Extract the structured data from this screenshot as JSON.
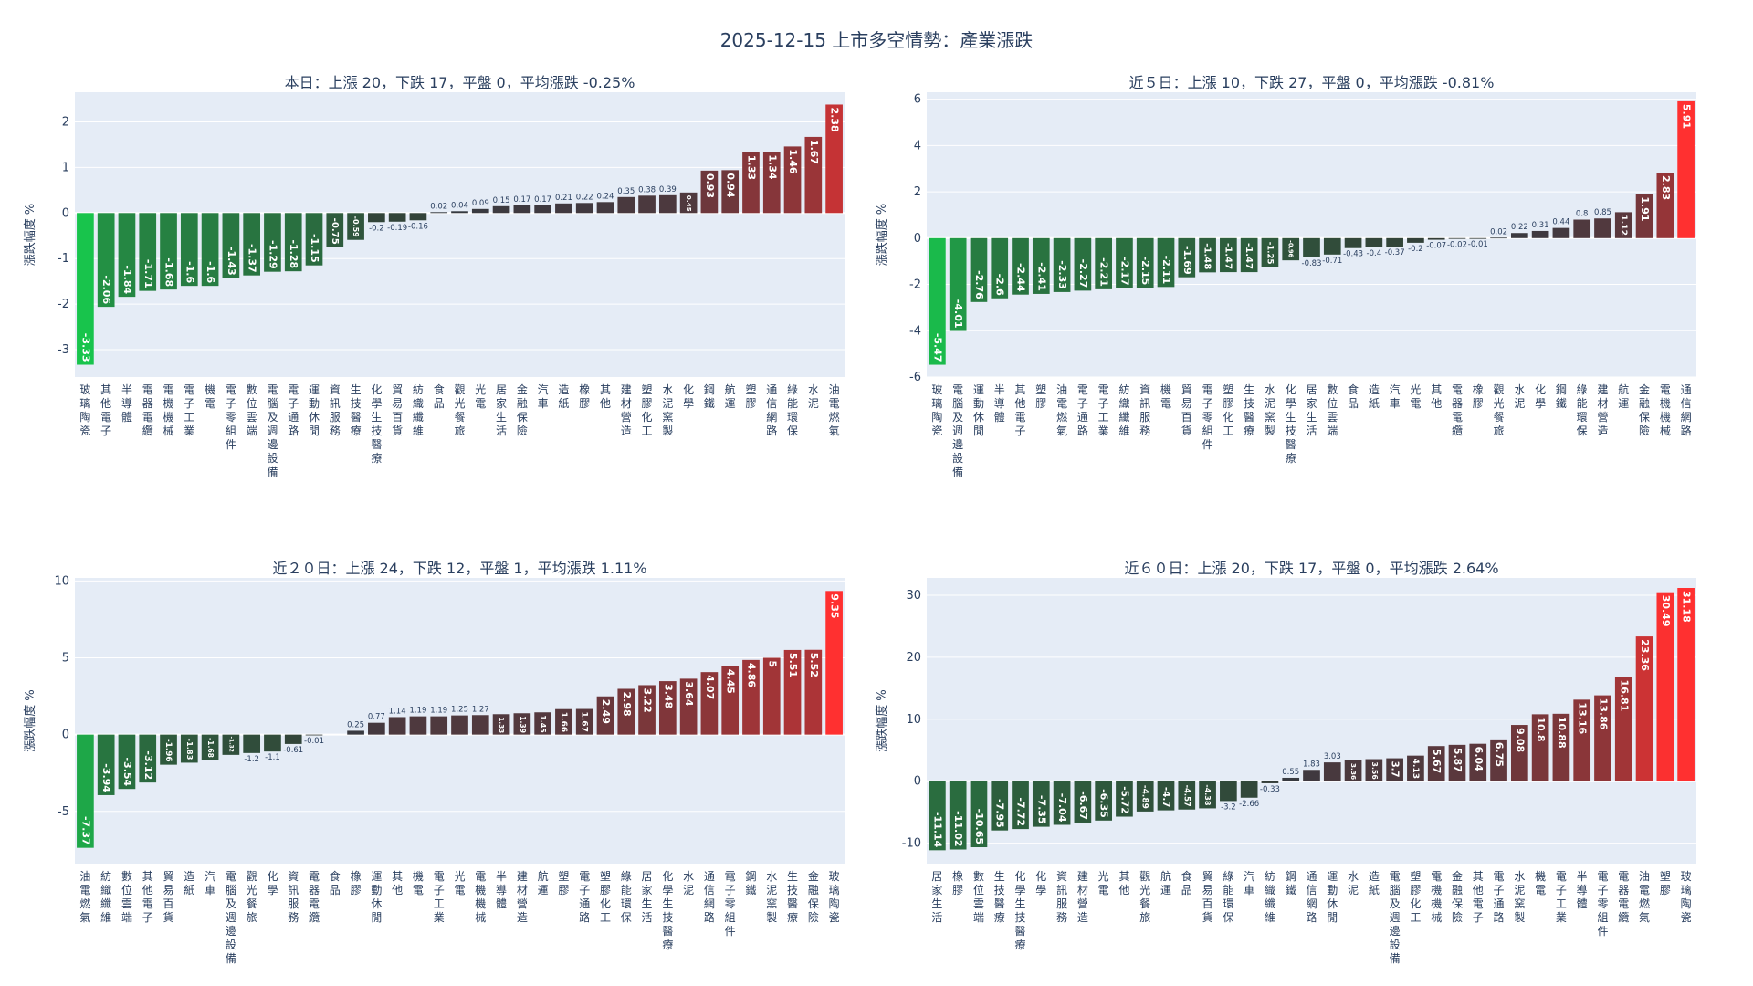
{
  "page_title": "2025-12-15 上市多空情勢：產業漲跌",
  "chart_data": [
    {
      "type": "bar",
      "title": "本日：上漲 20，下跌 17，平盤 0，平均漲跌 -0.25%",
      "ylabel": "漲跌幅度 %",
      "ylim": [
        -3.6,
        2.65
      ],
      "yticks": [
        -3,
        -2,
        -1,
        0,
        1,
        2
      ],
      "categories": [
        "玻璃陶瓷",
        "其他電子",
        "半導體",
        "電器電纜",
        "電機機械",
        "電子工業",
        "機電",
        "電子零組件",
        "數位雲端",
        "電腦及週邊設備",
        "電子通路",
        "運動休閒",
        "資訊服務",
        "生技醫療",
        "化學生技醫療",
        "貿易百貨",
        "紡織纖維",
        "食品",
        "觀光餐旅",
        "光電",
        "居家生活",
        "金融保險",
        "汽車",
        "造紙",
        "橡膠",
        "其他",
        "建材營造",
        "塑膠化工",
        "水泥窯製",
        "化學",
        "鋼鐵",
        "航運",
        "塑膠",
        "通信網路",
        "綠能環保",
        "水泥",
        "油電燃氣"
      ],
      "values": [
        -3.33,
        -2.06,
        -1.84,
        -1.71,
        -1.68,
        -1.6,
        -1.6,
        -1.43,
        -1.37,
        -1.29,
        -1.28,
        -1.15,
        -0.75,
        -0.59,
        -0.2,
        -0.19,
        -0.16,
        0.02,
        0.04,
        0.09,
        0.15,
        0.17,
        0.17,
        0.21,
        0.22,
        0.24,
        0.35,
        0.38,
        0.39,
        0.45,
        0.93,
        0.94,
        1.33,
        1.34,
        1.46,
        1.67,
        2.38
      ],
      "labels": [
        "-3.33",
        "-2.06",
        "-1.84",
        "-1.71",
        "-1.68",
        "-1.6",
        "-1.6",
        "-1.43",
        "-1.37",
        "-1.29",
        "-1.28",
        "-1.15",
        "-0.75",
        "-0.59",
        "-0.2",
        "-0.19",
        "-0.16",
        "0.02",
        "0.04",
        "0.09",
        "0.15",
        "0.17",
        "0.17",
        "0.21",
        "0.22",
        "0.24",
        "0.35",
        "0.38",
        "0.39",
        "0.45",
        "0.93",
        "0.94",
        "1.33",
        "1.34",
        "1.46",
        "1.67",
        "2.38"
      ]
    },
    {
      "type": "bar",
      "title": "近５日：上漲 10，下跌 27，平盤 0，平均漲跌 -0.81%",
      "ylabel": "漲跌幅度 %",
      "ylim": [
        -6,
        6.3
      ],
      "yticks": [
        -6,
        -4,
        -2,
        0,
        2,
        4,
        6
      ],
      "categories": [
        "玻璃陶瓷",
        "電腦及週邊設備",
        "運動休閒",
        "半導體",
        "其他電子",
        "塑膠",
        "油電燃氣",
        "電子通路",
        "電子工業",
        "紡織纖維",
        "資訊服務",
        "機電",
        "貿易百貨",
        "電子零組件",
        "塑膠化工",
        "生技醫療",
        "水泥窯製",
        "化學生技醫療",
        "居家生活",
        "數位雲端",
        "食品",
        "造紙",
        "汽車",
        "光電",
        "其他",
        "電器電纜",
        "橡膠",
        "觀光餐旅",
        "水泥",
        "化學",
        "鋼鐵",
        "綠能環保",
        "建材營造",
        "航運",
        "金融保險",
        "電機機械",
        "通信網路"
      ],
      "values": [
        -5.47,
        -4.01,
        -2.76,
        -2.6,
        -2.44,
        -2.41,
        -2.33,
        -2.27,
        -2.21,
        -2.17,
        -2.15,
        -2.11,
        -1.69,
        -1.48,
        -1.47,
        -1.47,
        -1.25,
        -0.96,
        -0.83,
        -0.71,
        -0.43,
        -0.4,
        -0.37,
        -0.2,
        -0.07,
        -0.02,
        -0.01,
        0.02,
        0.22,
        0.31,
        0.44,
        0.8,
        0.85,
        1.12,
        1.91,
        2.83,
        5.91
      ],
      "labels": [
        "-5.47",
        "-4.01",
        "-2.76",
        "-2.6",
        "-2.44",
        "-2.41",
        "-2.33",
        "-2.27",
        "-2.21",
        "-2.17",
        "-2.15",
        "-2.11",
        "-1.69",
        "-1.48",
        "-1.47",
        "-1.47",
        "-1.25",
        "-0.96",
        "-0.83",
        "-0.71",
        "-0.43",
        "-0.4",
        "-0.37",
        "-0.2",
        "-0.07",
        "-0.02",
        "-0.01",
        "0.02",
        "0.22",
        "0.31",
        "0.44",
        "0.8",
        "0.85",
        "1.12",
        "1.91",
        "2.83",
        "5.91"
      ]
    },
    {
      "type": "bar",
      "title": "近２０日：上漲 24，下跌 12，平盤 1，平均漲跌 1.11%",
      "ylabel": "漲跌幅度 %",
      "ylim": [
        -8.4,
        10.2
      ],
      "yticks": [
        -5,
        0,
        5,
        10
      ],
      "categories": [
        "油電燃氣",
        "紡織纖維",
        "數位雲端",
        "其他電子",
        "貿易百貨",
        "造紙",
        "汽車",
        "電腦及週邊設備",
        "觀光餐旅",
        "化學",
        "資訊服務",
        "電器電纜",
        "食品",
        "橡膠",
        "運動休閒",
        "其他",
        "機電",
        "電子工業",
        "光電",
        "電機機械",
        "半導體",
        "建材營造",
        "航運",
        "塑膠",
        "電子通路",
        "塑膠化工",
        "綠能環保",
        "居家生活",
        "化學生技醫療",
        "水泥",
        "通信網路",
        "電子零組件",
        "鋼鐵",
        "水泥窯製",
        "生技醫療",
        "金融保險",
        "玻璃陶瓷"
      ],
      "values": [
        -7.37,
        -3.94,
        -3.54,
        -3.12,
        -1.96,
        -1.83,
        -1.68,
        -1.32,
        -1.2,
        -1.1,
        -0.61,
        -0.01,
        0,
        0.25,
        0.77,
        1.14,
        1.19,
        1.19,
        1.25,
        1.27,
        1.33,
        1.39,
        1.45,
        1.66,
        1.67,
        2.49,
        2.98,
        3.22,
        3.48,
        3.64,
        4.07,
        4.45,
        4.86,
        5,
        5.51,
        5.52,
        9.35
      ],
      "labels": [
        "-7.37",
        "-3.94",
        "-3.54",
        "-3.12",
        "-1.96",
        "-1.83",
        "-1.68",
        "-1.32",
        "-1.2",
        "-1.1",
        "-0.61",
        "-0.01",
        "",
        "0.25",
        "0.77",
        "1.14",
        "1.19",
        "1.19",
        "1.25",
        "1.27",
        "1.33",
        "1.39",
        "1.45",
        "1.66",
        "1.67",
        "2.49",
        "2.98",
        "3.22",
        "3.48",
        "3.64",
        "4.07",
        "4.45",
        "4.86",
        "5",
        "5.51",
        "5.52",
        "9.35"
      ]
    },
    {
      "type": "bar",
      "title": "近６０日：上漲 20，下跌 17，平盤 0，平均漲跌 2.64%",
      "ylabel": "漲跌幅度 %",
      "ylim": [
        -13.3,
        32.8
      ],
      "yticks": [
        -10,
        0,
        10,
        20,
        30
      ],
      "categories": [
        "居家生活",
        "橡膠",
        "數位雲端",
        "生技醫療",
        "化學生技醫療",
        "化學",
        "資訊服務",
        "建材營造",
        "光電",
        "其他",
        "觀光餐旅",
        "航運",
        "食品",
        "貿易百貨",
        "綠能環保",
        "汽車",
        "紡織纖維",
        "鋼鐵",
        "通信網路",
        "運動休閒",
        "水泥",
        "造紙",
        "電腦及週邊設備",
        "塑膠化工",
        "電機機械",
        "金融保險",
        "其他電子",
        "電子通路",
        "水泥窯製",
        "機電",
        "電子工業",
        "半導體",
        "電子零組件",
        "電器電纜",
        "油電燃氣",
        "塑膠",
        "玻璃陶瓷"
      ],
      "values": [
        -11.14,
        -11.02,
        -10.65,
        -7.95,
        -7.72,
        -7.35,
        -7.04,
        -6.67,
        -6.35,
        -5.72,
        -4.89,
        -4.7,
        -4.57,
        -4.38,
        -3.2,
        -2.66,
        -0.33,
        0.55,
        1.83,
        3.03,
        3.36,
        3.56,
        3.7,
        4.13,
        5.67,
        5.87,
        6.04,
        6.75,
        9.08,
        10.8,
        10.88,
        13.16,
        13.86,
        16.81,
        23.36,
        30.49,
        31.18
      ],
      "labels": [
        "-11.14",
        "-11.02",
        "-10.65",
        "-7.95",
        "-7.72",
        "-7.35",
        "-7.04",
        "-6.67",
        "-6.35",
        "-5.72",
        "-4.89",
        "-4.7",
        "-4.57",
        "-4.38",
        "-3.2",
        "-2.66",
        "-0.33",
        "0.55",
        "1.83",
        "3.03",
        "3.36",
        "3.56",
        "3.7",
        "4.13",
        "5.67",
        "5.87",
        "6.04",
        "6.75",
        "9.08",
        "10.8",
        "10.88",
        "13.16",
        "13.86",
        "16.81",
        "23.36",
        "30.49",
        "31.18"
      ]
    }
  ],
  "colors": {
    "plot_bg": "#e5ecf6",
    "grid": "#ffffff",
    "text": "#2a3f5f"
  }
}
